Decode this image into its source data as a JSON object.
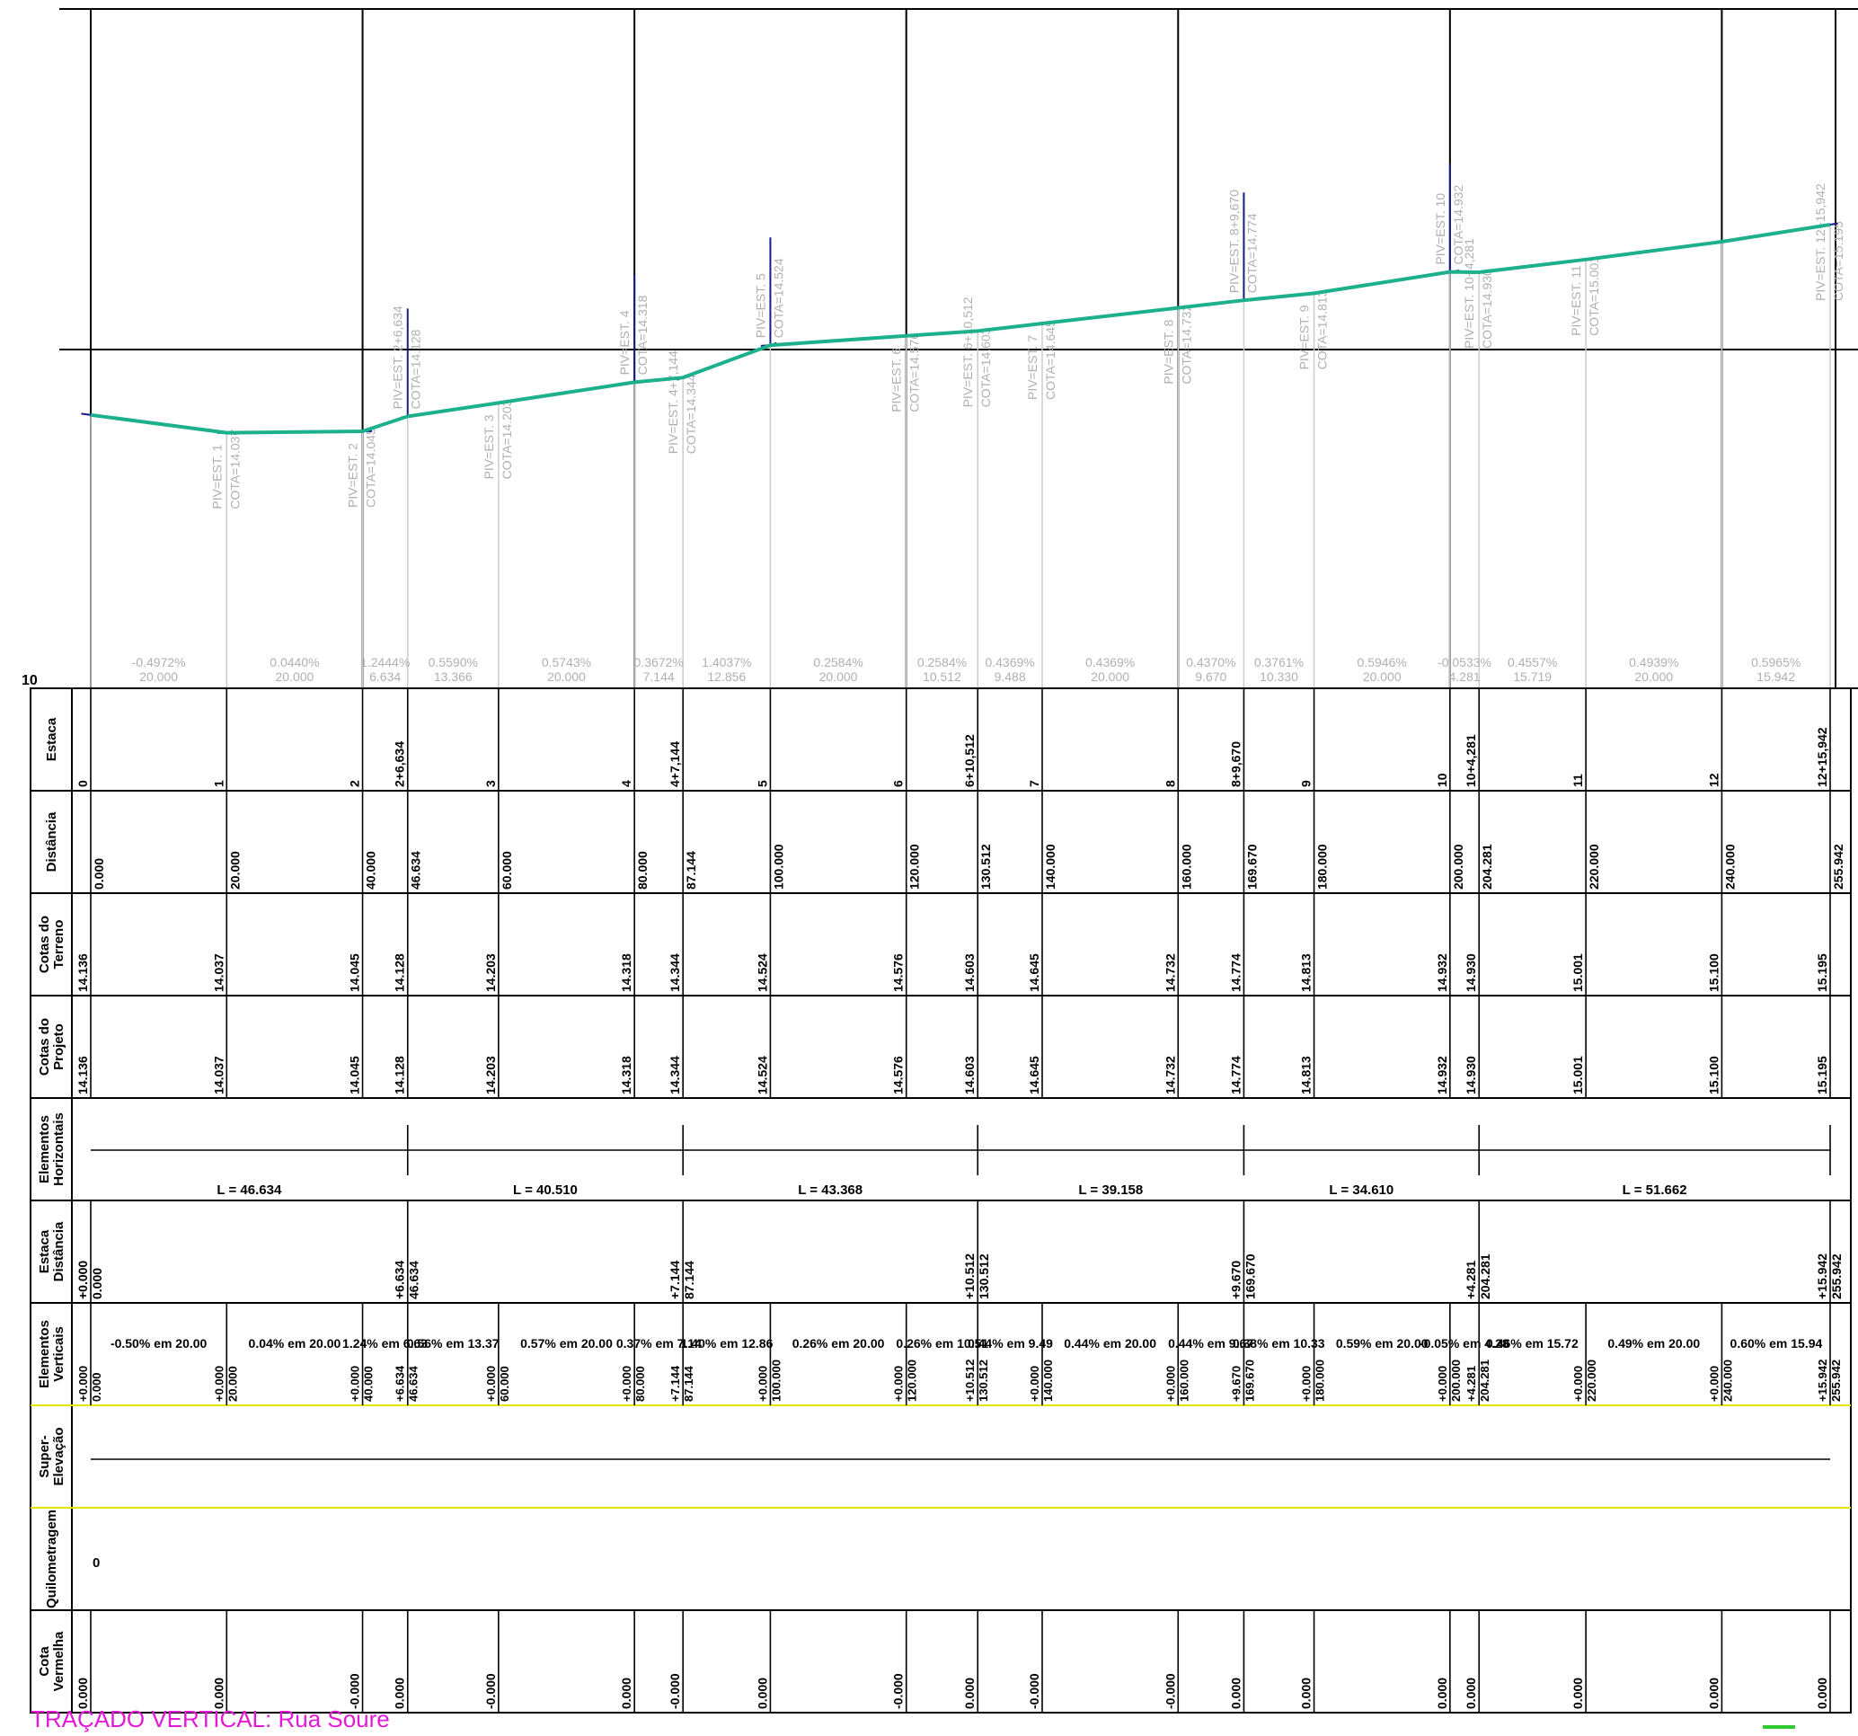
{
  "title": "TRAÇADO VERTICAL:  Rua Soure",
  "axis_label": "10",
  "colors": {
    "profile": "#1cb08c",
    "grade_tangent": "#1a1a8c",
    "pvi_label": "#b0b0b0",
    "grid": "#000000",
    "table_divider": "#e6e600",
    "title": "#e21ad6",
    "marker": "#32c832"
  },
  "row_labels": {
    "estaca": [
      "Estaca"
    ],
    "distancia": [
      "Distância"
    ],
    "terreno": [
      "Cotas do",
      "Terreno"
    ],
    "projeto": [
      "Cotas do",
      "Projeto"
    ],
    "elem_h": [
      "Elementos",
      "Horizontais"
    ],
    "estdist": [
      "Estaca",
      "Distância"
    ],
    "elem_v": [
      "Elementos",
      "Verticais"
    ],
    "superelev": [
      "Super-",
      "Elevação"
    ],
    "quilom": [
      "Quilometragem"
    ],
    "cota_verm": [
      "Cota",
      "Vermelha"
    ]
  },
  "stations": [
    {
      "est": "0",
      "dist": "0.000",
      "terreno": "14.136",
      "projeto": "14.136",
      "vermelha": "0.000",
      "d": 0
    },
    {
      "est": "1",
      "dist": "20.000",
      "terreno": "14.037",
      "projeto": "14.037",
      "vermelha": "0.000",
      "d": 20
    },
    {
      "est": "2",
      "dist": "40.000",
      "terreno": "14.045",
      "projeto": "14.045",
      "vermelha": "-0.000",
      "d": 40
    },
    {
      "est": "2+6,634",
      "dist": "46.634",
      "terreno": "14.128",
      "projeto": "14.128",
      "vermelha": "0.000",
      "d": 46.634
    },
    {
      "est": "3",
      "dist": "60.000",
      "terreno": "14.203",
      "projeto": "14.203",
      "vermelha": "-0.000",
      "d": 60
    },
    {
      "est": "4",
      "dist": "80.000",
      "terreno": "14.318",
      "projeto": "14.318",
      "vermelha": "0.000",
      "d": 80
    },
    {
      "est": "4+7,144",
      "dist": "87.144",
      "terreno": "14.344",
      "projeto": "14.344",
      "vermelha": "-0.000",
      "d": 87.144
    },
    {
      "est": "5",
      "dist": "100.000",
      "terreno": "14.524",
      "projeto": "14.524",
      "vermelha": "0.000",
      "d": 100
    },
    {
      "est": "6",
      "dist": "120.000",
      "terreno": "14.576",
      "projeto": "14.576",
      "vermelha": "-0.000",
      "d": 120
    },
    {
      "est": "6+10,512",
      "dist": "130.512",
      "terreno": "14.603",
      "projeto": "14.603",
      "vermelha": "0.000",
      "d": 130.512
    },
    {
      "est": "7",
      "dist": "140.000",
      "terreno": "14.645",
      "projeto": "14.645",
      "vermelha": "-0.000",
      "d": 140
    },
    {
      "est": "8",
      "dist": "160.000",
      "terreno": "14.732",
      "projeto": "14.732",
      "vermelha": "-0.000",
      "d": 160
    },
    {
      "est": "8+9,670",
      "dist": "169.670",
      "terreno": "14.774",
      "projeto": "14.774",
      "vermelha": "0.000",
      "d": 169.67
    },
    {
      "est": "9",
      "dist": "180.000",
      "terreno": "14.813",
      "projeto": "14.813",
      "vermelha": "0.000",
      "d": 180
    },
    {
      "est": "10",
      "dist": "200.000",
      "terreno": "14.932",
      "projeto": "14.932",
      "vermelha": "0.000",
      "d": 200
    },
    {
      "est": "10+4,281",
      "dist": "204.281",
      "terreno": "14.930",
      "projeto": "14.930",
      "vermelha": "0.000",
      "d": 204.281
    },
    {
      "est": "11",
      "dist": "220.000",
      "terreno": "15.001",
      "projeto": "15.001",
      "vermelha": "0.000",
      "d": 220
    },
    {
      "est": "12",
      "dist": "240.000",
      "terreno": "15.100",
      "projeto": "15.100",
      "vermelha": "0.000",
      "d": 240
    },
    {
      "est": "12+15,942",
      "dist": "255.942",
      "terreno": "15.195",
      "projeto": "15.195",
      "vermelha": "0.000",
      "d": 255.942
    }
  ],
  "pvi_labels": [
    {
      "est": "PIV=EST. 1",
      "cota": "COTA=14.037",
      "d": 20,
      "level": "low"
    },
    {
      "est": "PIV=EST. 2",
      "cota": "COTA=14.045",
      "d": 40,
      "level": "low"
    },
    {
      "est": "PIV=EST. 2+6,634",
      "cota": "COTA=14.128",
      "d": 46.634,
      "level": "high"
    },
    {
      "est": "PIV=EST. 3",
      "cota": "COTA=14.203",
      "d": 60,
      "level": "low"
    },
    {
      "est": "PIV=EST. 4",
      "cota": "COTA=14.318",
      "d": 80,
      "level": "high"
    },
    {
      "est": "PIV=EST. 4+7,144",
      "cota": "COTA=14.344",
      "d": 87.144,
      "level": "low"
    },
    {
      "est": "PIV=EST. 5",
      "cota": "COTA=14.524",
      "d": 100,
      "level": "high"
    },
    {
      "est": "PIV=EST. 6",
      "cota": "COTA=14.576",
      "d": 120,
      "level": "low"
    },
    {
      "est": "PIV=EST. 6+10,512",
      "cota": "COTA=14.603",
      "d": 130.512,
      "level": "low"
    },
    {
      "est": "PIV=EST. 7",
      "cota": "COTA=14.645",
      "d": 140,
      "level": "low"
    },
    {
      "est": "PIV=EST. 8",
      "cota": "COTA=14.732",
      "d": 160,
      "level": "low"
    },
    {
      "est": "PIV=EST. 8+9,670",
      "cota": "COTA=14.774",
      "d": 169.67,
      "level": "high"
    },
    {
      "est": "PIV=EST. 9",
      "cota": "COTA=14.813",
      "d": 180,
      "level": "low"
    },
    {
      "est": "PIV=EST. 10",
      "cota": "COTA=14.932",
      "d": 200,
      "level": "high"
    },
    {
      "est": "PIV=EST. 10+4,281",
      "cota": "COTA=14.930",
      "d": 204.281,
      "level": "low"
    },
    {
      "est": "PIV=EST. 11",
      "cota": "COTA=15.001",
      "d": 220,
      "level": "low"
    },
    {
      "est": "PIV=EST. 12+15,942",
      "cota": "COTA=15.195",
      "d": 255.942,
      "level": "low"
    }
  ],
  "grades": [
    {
      "pct": "-0.4972%",
      "len": "20.000",
      "d0": 0,
      "d1": 20
    },
    {
      "pct": "0.0440%",
      "len": "20.000",
      "d0": 20,
      "d1": 40
    },
    {
      "pct": "1.2444%",
      "len": "6.634",
      "d0": 40,
      "d1": 46.634
    },
    {
      "pct": "0.5590%",
      "len": "13.366",
      "d0": 46.634,
      "d1": 60
    },
    {
      "pct": "0.5743%",
      "len": "20.000",
      "d0": 60,
      "d1": 80
    },
    {
      "pct": "0.3672%",
      "len": "7.144",
      "d0": 80,
      "d1": 87.144
    },
    {
      "pct": "1.4037%",
      "len": "12.856",
      "d0": 87.144,
      "d1": 100
    },
    {
      "pct": "0.2584%",
      "len": "20.000",
      "d0": 100,
      "d1": 120
    },
    {
      "pct": "0.2584%",
      "len": "10.512",
      "d0": 120,
      "d1": 130.512
    },
    {
      "pct": "0.4369%",
      "len": "9.488",
      "d0": 130.512,
      "d1": 140
    },
    {
      "pct": "0.4369%",
      "len": "20.000",
      "d0": 140,
      "d1": 160
    },
    {
      "pct": "0.4370%",
      "len": "9.670",
      "d0": 160,
      "d1": 169.67
    },
    {
      "pct": "0.3761%",
      "len": "10.330",
      "d0": 169.67,
      "d1": 180
    },
    {
      "pct": "0.5946%",
      "len": "20.000",
      "d0": 180,
      "d1": 200
    },
    {
      "pct": "-0.0533%",
      "len": "4.281",
      "d0": 200,
      "d1": 204.281
    },
    {
      "pct": "0.4557%",
      "len": "15.719",
      "d0": 204.281,
      "d1": 220
    },
    {
      "pct": "0.4939%",
      "len": "20.000",
      "d0": 220,
      "d1": 240
    },
    {
      "pct": "0.5965%",
      "len": "15.942",
      "d0": 240,
      "d1": 255.942
    }
  ],
  "horizontal_elements": [
    {
      "label": "L = 46.634",
      "d0": 0,
      "d1": 46.634
    },
    {
      "label": "L = 40.510",
      "d0": 46.634,
      "d1": 87.144
    },
    {
      "label": "L = 43.368",
      "d0": 87.144,
      "d1": 130.512
    },
    {
      "label": "L = 39.158",
      "d0": 130.512,
      "d1": 169.67
    },
    {
      "label": "L = 34.610",
      "d0": 169.67,
      "d1": 204.281
    },
    {
      "label": "L = 51.662",
      "d0": 204.281,
      "d1": 255.942
    }
  ],
  "estaca_distancia": [
    {
      "a": "+0.000",
      "b": "0.000",
      "d": 0
    },
    {
      "a": "+6.634",
      "b": "46.634",
      "d": 46.634
    },
    {
      "a": "+7.144",
      "b": "87.144",
      "d": 87.144
    },
    {
      "a": "+10.512",
      "b": "130.512",
      "d": 130.512
    },
    {
      "a": "+9.670",
      "b": "169.670",
      "d": 169.67
    },
    {
      "a": "+4.281",
      "b": "204.281",
      "d": 204.281
    },
    {
      "a": "+15.942",
      "b": "255.942",
      "d": 255.942
    }
  ],
  "vertical_element_labels": [
    {
      "text": "-0.50% em 20.00",
      "d": 10
    },
    {
      "text": "0.04% em 20.00",
      "d": 30
    },
    {
      "text": "1.24% em 6.63",
      "d": 43.3
    },
    {
      "text": "0.56% em 13.37",
      "d": 53.3
    },
    {
      "text": "0.57% em 20.00",
      "d": 70
    },
    {
      "text": "0.37% em 7.14",
      "d": 83.6
    },
    {
      "text": "1.40% em 12.86",
      "d": 93.6
    },
    {
      "text": "0.26% em 20.00",
      "d": 110
    },
    {
      "text": "0.26% em 10.51",
      "d": 125.3
    },
    {
      "text": "0.44% em 9.49",
      "d": 135.3
    },
    {
      "text": "0.44% em 20.00",
      "d": 150
    },
    {
      "text": "0.44% em 9.67",
      "d": 164.8
    },
    {
      "text": "0.38% em 10.33",
      "d": 174.8
    },
    {
      "text": "0.59% em 20.00",
      "d": 190
    },
    {
      "text": "-0.05% em 4.28",
      "d": 202.1
    },
    {
      "text": "0.46% em 15.72",
      "d": 212.1
    },
    {
      "text": "0.49% em 20.00",
      "d": 230
    },
    {
      "text": "0.60% em 15.94",
      "d": 248
    }
  ],
  "vertical_element_stations": [
    {
      "a": "+0.000",
      "b": "0.000",
      "d": 0
    },
    {
      "a": "+0.000",
      "b": "20.000",
      "d": 20
    },
    {
      "a": "+0.000",
      "b": "40.000",
      "d": 40
    },
    {
      "a": "+6.634",
      "b": "46.634",
      "d": 46.634
    },
    {
      "a": "+0.000",
      "b": "60.000",
      "d": 60
    },
    {
      "a": "+0.000",
      "b": "80.000",
      "d": 80
    },
    {
      "a": "+7.144",
      "b": "87.144",
      "d": 87.144
    },
    {
      "a": "+0.000",
      "b": "100.000",
      "d": 100
    },
    {
      "a": "+0.000",
      "b": "120.000",
      "d": 120
    },
    {
      "a": "+10.512",
      "b": "130.512",
      "d": 130.512
    },
    {
      "a": "+0.000",
      "b": "140.000",
      "d": 140
    },
    {
      "a": "+0.000",
      "b": "160.000",
      "d": 160
    },
    {
      "a": "+9.670",
      "b": "169.670",
      "d": 169.67
    },
    {
      "a": "+0.000",
      "b": "180.000",
      "d": 180
    },
    {
      "a": "+0.000",
      "b": "200.000",
      "d": 200
    },
    {
      "a": "+4.281",
      "b": "204.281",
      "d": 204.281
    },
    {
      "a": "+0.000",
      "b": "220.000",
      "d": 220
    },
    {
      "a": "+0.000",
      "b": "240.000",
      "d": 240
    },
    {
      "a": "+15.942",
      "b": "255.942",
      "d": 255.942
    }
  ],
  "quilometragem": "0"
}
